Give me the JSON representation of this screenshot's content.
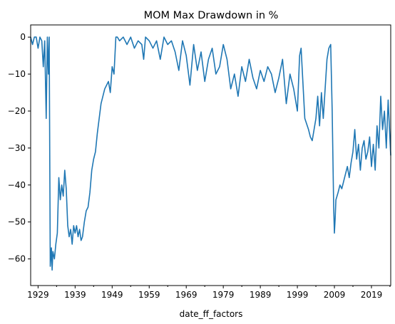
{
  "chart_data": {
    "type": "line",
    "title": "MOM Max Drawdown in %",
    "xlabel": "date_ff_factors",
    "ylabel": "",
    "xlim": [
      1927.0,
      2024.2
    ],
    "ylim": [
      -67.2,
      3.3
    ],
    "x_ticks": [
      "1929",
      "1939",
      "1949",
      "1959",
      "1969",
      "1979",
      "1989",
      "1999",
      "2009",
      "2019"
    ],
    "y_ticks": [
      0,
      -10,
      -20,
      -30,
      -40,
      -50,
      -60
    ],
    "grid": false,
    "legend": "none",
    "series": [
      {
        "color": "#1f77b4",
        "x": [
          1927.0,
          1927.5,
          1928.0,
          1928.5,
          1929.0,
          1929.5,
          1930.0,
          1930.4,
          1930.8,
          1931.2,
          1931.5,
          1931.8,
          1932.0,
          1932.3,
          1932.6,
          1932.8,
          1933.0,
          1933.4,
          1933.8,
          1934.2,
          1934.6,
          1935.0,
          1935.4,
          1935.8,
          1936.2,
          1936.6,
          1937.0,
          1937.4,
          1937.8,
          1938.2,
          1938.6,
          1939.0,
          1939.4,
          1939.8,
          1940.2,
          1940.6,
          1941.0,
          1941.5,
          1942.0,
          1942.5,
          1943.0,
          1943.5,
          1944.0,
          1944.5,
          1945.0,
          1945.5,
          1946.0,
          1946.5,
          1947.0,
          1947.5,
          1948.0,
          1948.5,
          1949.0,
          1949.5,
          1950.0,
          1950.4,
          1951.0,
          1952.0,
          1953.0,
          1954.0,
          1955.0,
          1956.0,
          1957.0,
          1957.5,
          1958.0,
          1959.0,
          1960.0,
          1961.0,
          1962.0,
          1963.0,
          1964.0,
          1965.0,
          1966.0,
          1967.0,
          1968.0,
          1969.0,
          1970.0,
          1971.0,
          1972.0,
          1973.0,
          1974.0,
          1975.0,
          1976.0,
          1977.0,
          1978.0,
          1979.0,
          1980.0,
          1981.0,
          1982.0,
          1983.0,
          1984.0,
          1985.0,
          1986.0,
          1987.0,
          1988.0,
          1989.0,
          1990.0,
          1991.0,
          1992.0,
          1993.0,
          1994.0,
          1995.0,
          1996.0,
          1997.0,
          1998.0,
          1999.0,
          1999.6,
          2000.0,
          2001.0,
          2002.0,
          2002.5,
          2003.0,
          2004.0,
          2004.5,
          2005.0,
          2005.5,
          2006.0,
          2007.0,
          2007.5,
          2008.0,
          2008.4,
          2008.8,
          2009.0,
          2009.2,
          2009.4,
          2009.7,
          2010.0,
          2010.5,
          2011.0,
          2011.5,
          2012.0,
          2012.5,
          2013.0,
          2013.5,
          2014.0,
          2014.5,
          2015.0,
          2015.5,
          2016.0,
          2016.5,
          2017.0,
          2017.5,
          2018.0,
          2018.5,
          2019.0,
          2019.5,
          2020.0,
          2020.5,
          2021.0,
          2021.5,
          2022.0,
          2022.5,
          2023.0,
          2023.5,
          2024.2
        ],
        "values": [
          0,
          -2,
          0,
          0,
          -3,
          0,
          -1,
          -8,
          -1,
          -22,
          0,
          -10,
          0,
          -62,
          -57,
          -63,
          -58,
          -60,
          -56,
          -53,
          -38,
          -44,
          -40,
          -43,
          -36,
          -41,
          -51,
          -54,
          -52,
          -56,
          -51,
          -53,
          -51,
          -54,
          -52,
          -55,
          -54,
          -50,
          -47,
          -46,
          -42,
          -36,
          -33,
          -31,
          -26,
          -22,
          -18,
          -16,
          -14,
          -13,
          -12,
          -15,
          -8,
          -10,
          0,
          0,
          -1,
          0,
          -2,
          0,
          -3,
          -1,
          -2,
          -6,
          0,
          -1,
          -3,
          -1,
          -6,
          0,
          -2,
          -1,
          -4,
          -9,
          -1,
          -5,
          -13,
          -2,
          -9,
          -4,
          -12,
          -6,
          -3,
          -10,
          -8,
          -2,
          -6,
          -14,
          -10,
          -16,
          -8,
          -12,
          -6,
          -11,
          -14,
          -9,
          -12,
          -8,
          -10,
          -15,
          -11,
          -6,
          -18,
          -10,
          -14,
          -20,
          -5,
          -3,
          -22,
          -25,
          -27,
          -28,
          -22,
          -16,
          -24,
          -15,
          -22,
          -6,
          -3,
          -2,
          -20,
          -46,
          -53,
          -49,
          -44,
          -43,
          -42,
          -40,
          -41,
          -39,
          -37,
          -35,
          -38,
          -34,
          -31,
          -25,
          -33,
          -29,
          -36,
          -30,
          -28,
          -33,
          -31,
          -27,
          -35,
          -29,
          -36,
          -24,
          -30,
          -16,
          -25,
          -20,
          -30,
          -17,
          -32
        ]
      }
    ]
  }
}
